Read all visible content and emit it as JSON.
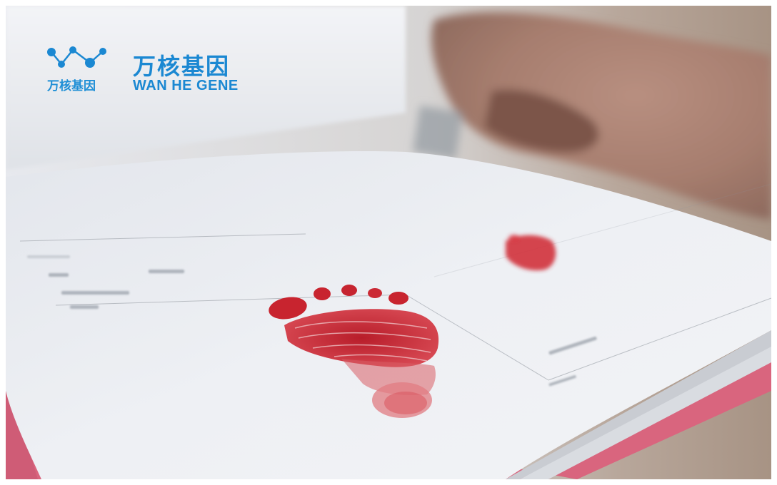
{
  "image": {
    "description_name": "baby red footprint on certificate page"
  },
  "logo": {
    "icon": "molecule-network-icon",
    "mark_caption": "万核基因",
    "brand_cn": "万核基因",
    "brand_en": "WAN HE GENE",
    "color": "#1b88d2"
  },
  "colors": {
    "ink": "#c8242f",
    "paper": "#eef0f3",
    "cover": "#d9657e"
  }
}
